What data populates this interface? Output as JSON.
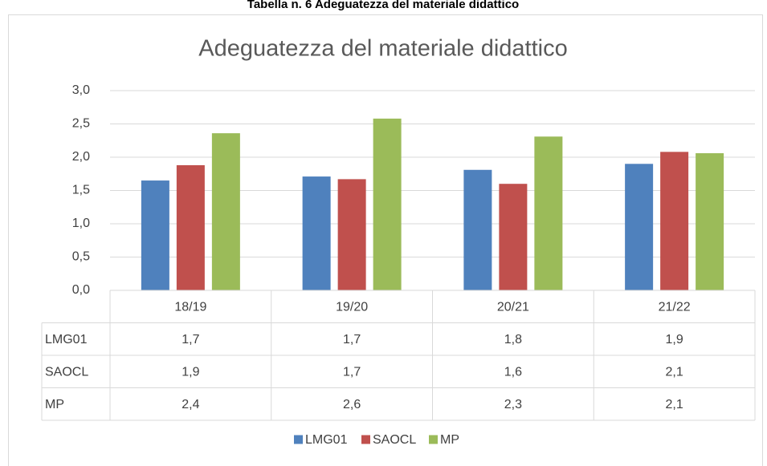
{
  "caption": "Tabella n. 6 Adeguatezza del materiale didattico",
  "chart_data": {
    "type": "bar",
    "title": "Adeguatezza del materiale didattico",
    "categories": [
      "18/19",
      "19/20",
      "20/21",
      "21/22"
    ],
    "series": [
      {
        "name": "LMG01",
        "color": "#4f81bd",
        "values": [
          1.65,
          1.71,
          1.81,
          1.9
        ],
        "value_labels": [
          "1,7",
          "1,7",
          "1,8",
          "1,9"
        ]
      },
      {
        "name": "SAOCL",
        "color": "#c0504d",
        "values": [
          1.88,
          1.67,
          1.6,
          2.08
        ],
        "value_labels": [
          "1,9",
          "1,7",
          "1,6",
          "2,1"
        ]
      },
      {
        "name": "MP",
        "color": "#9bbb59",
        "values": [
          2.36,
          2.58,
          2.31,
          2.06
        ],
        "value_labels": [
          "2,4",
          "2,6",
          "2,3",
          "2,1"
        ]
      }
    ],
    "ylim": [
      0,
      3
    ],
    "yticks": [
      {
        "value": 0,
        "label": "0,0"
      },
      {
        "value": 0.5,
        "label": "0,5"
      },
      {
        "value": 1,
        "label": "1,0"
      },
      {
        "value": 1.5,
        "label": "1,5"
      },
      {
        "value": 2,
        "label": "2,0"
      },
      {
        "value": 2.5,
        "label": "2,5"
      },
      {
        "value": 3,
        "label": "3,0"
      }
    ],
    "grid": true,
    "legend": "bottom"
  }
}
